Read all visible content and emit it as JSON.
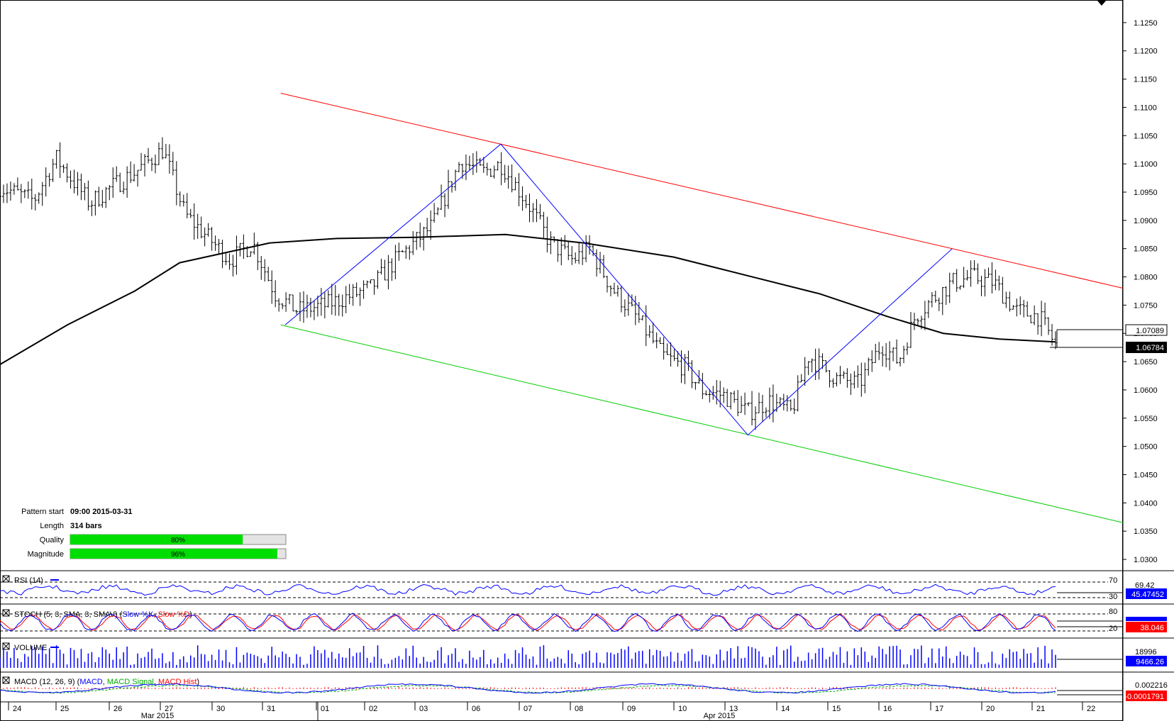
{
  "chart_data": {
    "type": "ohlc",
    "instrument_note": "",
    "price_axis": {
      "ticks": [
        "1.1250",
        "1.1200",
        "1.1150",
        "1.1100",
        "1.1050",
        "1.1000",
        "1.0950",
        "1.0900",
        "1.0850",
        "1.0800",
        "1.0750",
        "1.0700",
        "1.0650",
        "1.0600",
        "1.0550",
        "1.0500",
        "1.0450",
        "1.0400",
        "1.0350",
        "1.0300"
      ],
      "ylim": [
        1.028,
        1.129
      ]
    },
    "price_tags": {
      "upper": "1.07089",
      "lower": "1.06784",
      "upper_value": 1.07089,
      "lower_value": 1.06784
    },
    "date_axis": {
      "days": [
        "24",
        "25",
        "26",
        "27",
        "30",
        "31",
        "01",
        "02",
        "03",
        "06",
        "07",
        "08",
        "09",
        "10",
        "13",
        "14",
        "15",
        "16",
        "17",
        "20",
        "21",
        "22"
      ],
      "months": [
        "Mar 2015",
        "Apr 2015"
      ]
    },
    "channel": {
      "resistance": {
        "from_bar": 0.25,
        "from": 1.1125,
        "to_bar": 1.0,
        "to": 1.078,
        "color": "#ff0000"
      },
      "support": {
        "from_bar": 0.25,
        "from": 1.0715,
        "to_bar": 1.0,
        "to": 1.0365,
        "color": "#00cc00"
      }
    },
    "zigzag": {
      "color": "#0000ff",
      "points": [
        [
          0.254,
          1.0715
        ],
        [
          0.446,
          1.1035
        ],
        [
          0.666,
          1.052
        ],
        [
          0.848,
          1.085
        ]
      ]
    },
    "moving_average": {
      "color": "#000000",
      "points": [
        [
          0.0,
          1.0645
        ],
        [
          0.06,
          1.0715
        ],
        [
          0.12,
          1.0775
        ],
        [
          0.16,
          1.0825
        ],
        [
          0.24,
          1.086
        ],
        [
          0.3,
          1.0868
        ],
        [
          0.37,
          1.087
        ],
        [
          0.45,
          1.0875
        ],
        [
          0.52,
          1.086
        ],
        [
          0.6,
          1.0835
        ],
        [
          0.67,
          1.08
        ],
        [
          0.73,
          1.077
        ],
        [
          0.79,
          1.073
        ],
        [
          0.84,
          1.07
        ],
        [
          0.89,
          1.069
        ],
        [
          0.94,
          1.0685
        ]
      ]
    },
    "price_path": [
      [
        0.0,
        1.096
      ],
      [
        0.03,
        1.0935
      ],
      [
        0.05,
        1.101
      ],
      [
        0.08,
        1.093
      ],
      [
        0.1,
        1.096
      ],
      [
        0.12,
        1.0985
      ],
      [
        0.145,
        1.1025
      ],
      [
        0.165,
        1.091
      ],
      [
        0.18,
        1.088
      ],
      [
        0.205,
        1.083
      ],
      [
        0.225,
        1.086
      ],
      [
        0.245,
        1.077
      ],
      [
        0.265,
        1.074
      ],
      [
        0.29,
        1.075
      ],
      [
        0.33,
        1.078
      ],
      [
        0.355,
        1.0835
      ],
      [
        0.385,
        1.089
      ],
      [
        0.41,
        1.1005
      ],
      [
        0.43,
        1.0985
      ],
      [
        0.446,
        1.1
      ],
      [
        0.47,
        1.093
      ],
      [
        0.49,
        1.086
      ],
      [
        0.51,
        1.083
      ],
      [
        0.525,
        1.085
      ],
      [
        0.545,
        1.078
      ],
      [
        0.57,
        1.072
      ],
      [
        0.59,
        1.066
      ],
      [
        0.61,
        1.064
      ],
      [
        0.625,
        1.06
      ],
      [
        0.645,
        1.059
      ],
      [
        0.666,
        1.056
      ],
      [
        0.685,
        1.058
      ],
      [
        0.705,
        1.056
      ],
      [
        0.72,
        1.066
      ],
      [
        0.745,
        1.062
      ],
      [
        0.765,
        1.061
      ],
      [
        0.785,
        1.068
      ],
      [
        0.8,
        1.065
      ],
      [
        0.815,
        1.073
      ],
      [
        0.83,
        1.076
      ],
      [
        0.848,
        1.079
      ],
      [
        0.865,
        1.08
      ],
      [
        0.885,
        1.079
      ],
      [
        0.905,
        1.074
      ],
      [
        0.925,
        1.073
      ],
      [
        0.94,
        1.068
      ]
    ],
    "pattern_info": {
      "pattern_start_label": "Pattern start",
      "pattern_start_value": "09:00 2015-03-31",
      "length_label": "Length",
      "length_value": "314 bars",
      "quality_label": "Quality",
      "quality_value": "80%",
      "quality_fraction": 0.8,
      "magnitude_label": "Magnitude",
      "magnitude_value": "96%",
      "magnitude_fraction": 0.96
    },
    "indicators": {
      "rsi": {
        "label": "RSI (14)",
        "level_high": "70",
        "level_low": "30",
        "value_text": "69.42",
        "current": "45.47452",
        "color": "#0000ff"
      },
      "stoch": {
        "label_prefix": "STOCH (5, 3, SMA, 3, SMAV)",
        "label_k": "Slow %K",
        "label_d": "Slow %D",
        "level_high": "80",
        "level_low": "20",
        "current": "38.046",
        "k_color": "#0000ff",
        "d_color": "#ff0000"
      },
      "volume": {
        "label": "VOLUME",
        "value_text": "18996",
        "current": "9466.26",
        "color": "#0000ff"
      },
      "macd": {
        "label_prefix": "MACD (12, 26, 9)",
        "label_macd": "MACD",
        "label_signal": "MACD Signal",
        "label_hist": "MACD Hist",
        "value_text": "0.002216",
        "current": "-0.0001791",
        "macd_color": "#0000ff",
        "signal_color": "#00aa00",
        "hist_color": "#ff0000"
      }
    }
  }
}
